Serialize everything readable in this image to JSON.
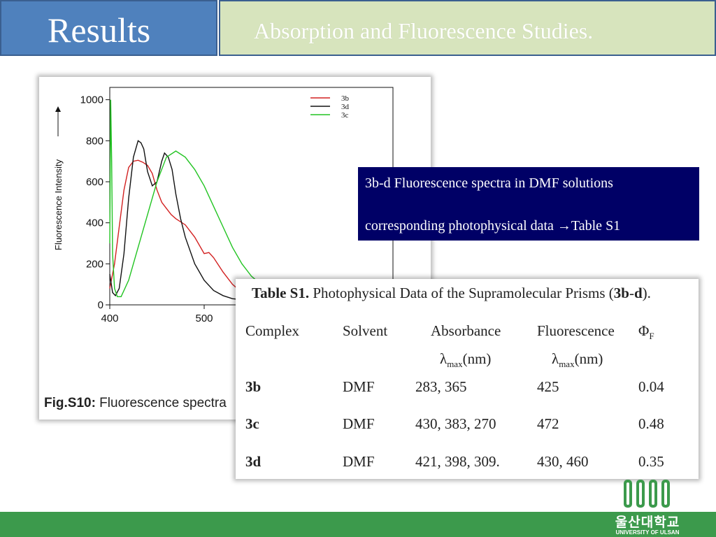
{
  "slide": {
    "title": "Results",
    "subtitle": "Absorption and Fluorescence Studies."
  },
  "figure": {
    "caption_bold": "Fig.S10:",
    "caption_text": " Fluorescence spectra"
  },
  "note": {
    "line1": "3b-d Fluorescence spectra in DMF solutions",
    "line2": "corresponding photophysical data →Table S1"
  },
  "table": {
    "caption_bold": "Table S1.",
    "caption_text": " Photophysical Data of the Supramolecular Prisms (",
    "caption_bold2": "3b",
    "caption_dash": "-",
    "caption_bold3": "d",
    "caption_end": ").",
    "headers": [
      "Complex",
      "Solvent",
      "Absorbance",
      "Fluorescence",
      "Φ"
    ],
    "phi_sub": "F",
    "sub_headers": [
      "λ",
      "max",
      "(nm)"
    ],
    "rows": [
      {
        "complex": "3b",
        "solvent": "DMF",
        "absorbance": "283, 365",
        "fluorescence": "425",
        "phi": "0.04"
      },
      {
        "complex": "3c",
        "solvent": "DMF",
        "absorbance": "430, 383, 270",
        "fluorescence": "472",
        "phi": "0.48"
      },
      {
        "complex": "3d",
        "solvent": "DMF",
        "absorbance": "421, 398, 309.",
        "fluorescence": "430, 460",
        "phi": "0.35"
      }
    ]
  },
  "logo": {
    "name": "울산대학교",
    "sub": "UNIVERSITY OF ULSAN"
  },
  "chart_data": {
    "type": "line",
    "ylabel": "Fluorescence Intensity",
    "xlabel": "",
    "xlim": [
      400,
      700
    ],
    "ylim": [
      0,
      1060
    ],
    "x_ticks": [
      "400",
      "500"
    ],
    "y_ticks": [
      "0",
      "200",
      "400",
      "600",
      "800",
      "1000"
    ],
    "series": [
      {
        "name": "3b",
        "color": "#d22020",
        "x": [
          400,
          405,
          410,
          415,
          420,
          425,
          430,
          435,
          440,
          445,
          450,
          455,
          460,
          465,
          470,
          480,
          490,
          500,
          505,
          510,
          520,
          530,
          540,
          560
        ],
        "y": [
          80,
          200,
          380,
          560,
          670,
          700,
          705,
          695,
          680,
          640,
          560,
          500,
          470,
          440,
          420,
          390,
          330,
          250,
          255,
          230,
          160,
          100,
          60,
          30
        ]
      },
      {
        "name": "3d",
        "color": "#111111",
        "x": [
          400,
          403,
          406,
          410,
          415,
          420,
          425,
          430,
          433,
          436,
          440,
          445,
          450,
          455,
          458,
          462,
          466,
          470,
          475,
          480,
          490,
          500,
          510,
          520,
          530,
          560
        ],
        "y": [
          150,
          60,
          45,
          80,
          250,
          520,
          720,
          800,
          790,
          760,
          650,
          580,
          600,
          700,
          740,
          720,
          660,
          540,
          420,
          330,
          200,
          120,
          70,
          45,
          30,
          15
        ]
      },
      {
        "name": "3c",
        "color": "#22c422",
        "x": [
          400,
          401,
          402,
          403,
          405,
          408,
          412,
          420,
          430,
          440,
          450,
          460,
          470,
          480,
          490,
          500,
          510,
          520,
          530,
          540,
          550,
          560,
          580,
          600
        ],
        "y": [
          300,
          1000,
          700,
          250,
          80,
          40,
          40,
          120,
          280,
          440,
          600,
          720,
          750,
          720,
          660,
          580,
          480,
          380,
          280,
          200,
          140,
          100,
          50,
          20
        ]
      }
    ],
    "legend_position": "top-right",
    "grid": false
  }
}
